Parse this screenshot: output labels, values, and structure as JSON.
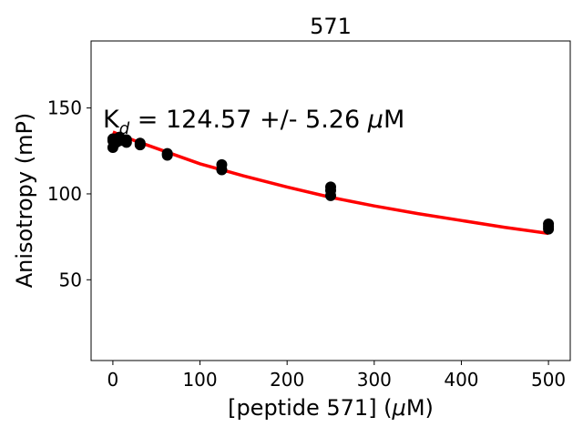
{
  "chart_data": {
    "type": "scatter",
    "title": "571",
    "xlabel_main": "[peptide 571] (",
    "xlabel_mu": "μ",
    "xlabel_tail": "M)",
    "ylabel": "Anisotropy (mP)",
    "xlim": [
      -25,
      525
    ],
    "ylim": [
      3,
      189
    ],
    "xticks": [
      0,
      100,
      200,
      300,
      400,
      500
    ],
    "yticks": [
      50,
      100,
      150
    ],
    "annotation": {
      "k": "K",
      "sub": "d",
      "middle": " = 124.57 +/- 5.26 ",
      "mu": "μ",
      "unit": "M"
    },
    "colors": {
      "points": "#000000",
      "fit": "#ff0000"
    },
    "series": [
      {
        "kind": "points",
        "points": [
          [
            0,
            127
          ],
          [
            0,
            131
          ],
          [
            0,
            132
          ],
          [
            3.9,
            130
          ],
          [
            3.9,
            132
          ],
          [
            7.8,
            131
          ],
          [
            7.8,
            133
          ],
          [
            15.6,
            130
          ],
          [
            15.6,
            131.5
          ],
          [
            31.25,
            128.5
          ],
          [
            31.25,
            129.5
          ],
          [
            62.5,
            122.5
          ],
          [
            62.5,
            123.5
          ],
          [
            125,
            114
          ],
          [
            125,
            117
          ],
          [
            250,
            99
          ],
          [
            250,
            102
          ],
          [
            250,
            104
          ],
          [
            500,
            79.5
          ],
          [
            500,
            81
          ],
          [
            500,
            82.5
          ]
        ]
      },
      {
        "kind": "fit",
        "x": [
          0,
          25,
          50,
          75,
          100,
          125,
          150,
          200,
          250,
          300,
          350,
          400,
          450,
          500
        ],
        "y": [
          136,
          131,
          126.5,
          122,
          117.5,
          114,
          110.5,
          104,
          98,
          93,
          88.5,
          84.5,
          80.5,
          77
        ]
      }
    ]
  }
}
